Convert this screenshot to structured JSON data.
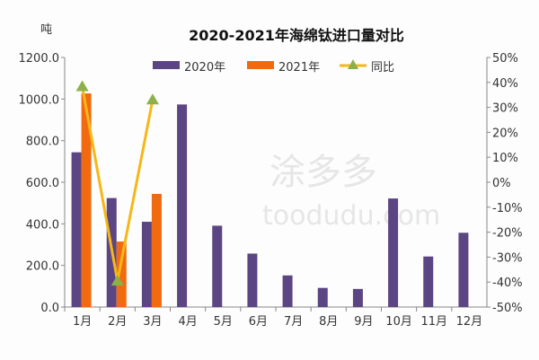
{
  "chart_data": {
    "type": "bar",
    "title": "2020-2021年海绵钛进口量对比",
    "ylabel": "吨",
    "categories": [
      "1月",
      "2月",
      "3月",
      "4月",
      "5月",
      "6月",
      "7月",
      "8月",
      "9月",
      "10月",
      "11月",
      "12月"
    ],
    "ylim": [
      0,
      1200
    ],
    "yticks": [
      "0.0",
      "200.0",
      "400.0",
      "600.0",
      "800.0",
      "1000.0",
      "1200.0"
    ],
    "y2lim": [
      -50,
      50
    ],
    "y2ticks": [
      "-50%",
      "-40%",
      "-30%",
      "-20%",
      "-10%",
      "0%",
      "10%",
      "20%",
      "30%",
      "40%",
      "50%"
    ],
    "series": [
      {
        "name": "2020年",
        "type": "bar",
        "color": "#5b4583",
        "values": [
          744,
          524,
          410,
          974,
          391,
          257,
          152,
          92,
          87,
          522,
          243,
          357
        ]
      },
      {
        "name": "2021年",
        "type": "bar",
        "color": "#f26a10",
        "values": [
          1027,
          315,
          544,
          null,
          null,
          null,
          null,
          null,
          null,
          null,
          null,
          null
        ]
      },
      {
        "name": "同比",
        "type": "line",
        "axis": "right",
        "color": "#f5b818",
        "marker_color": "#8db048",
        "values": [
          38.3,
          -39.6,
          33.0,
          null,
          null,
          null,
          null,
          null,
          null,
          null,
          null,
          null
        ]
      }
    ],
    "grid": false,
    "legend": "top"
  },
  "watermark": {
    "text": "涂多多",
    "url": "toodudu.com"
  }
}
